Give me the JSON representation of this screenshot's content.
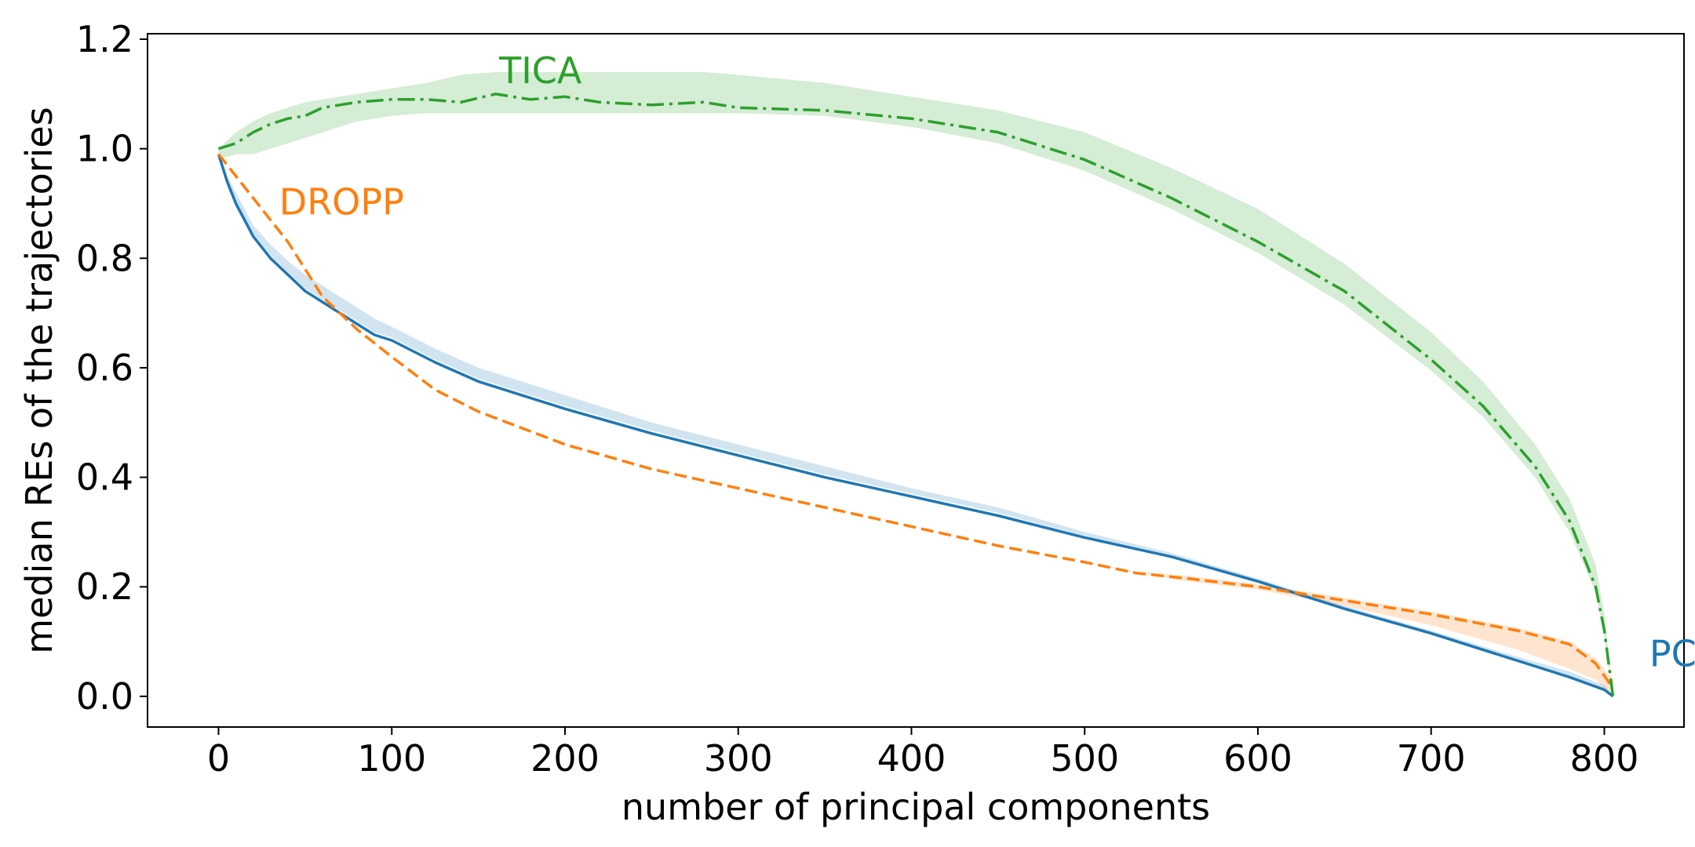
{
  "chart_data": {
    "type": "line",
    "title": "",
    "xlabel": "number of principal components",
    "ylabel": "median REs of the trajectories",
    "xlim": [
      -41,
      846
    ],
    "ylim": [
      -0.056,
      1.21
    ],
    "xticks": [
      0,
      100,
      200,
      300,
      400,
      500,
      600,
      700,
      800
    ],
    "yticks": [
      0.0,
      0.2,
      0.4,
      0.6,
      0.8,
      1.0,
      1.2
    ],
    "xtick_labels": [
      "0",
      "100",
      "200",
      "300",
      "400",
      "500",
      "600",
      "700",
      "800"
    ],
    "ytick_labels": [
      "0.0",
      "0.2",
      "0.4",
      "0.6",
      "0.8",
      "1.0",
      "1.2"
    ],
    "grid": false,
    "legend": "none",
    "series": [
      {
        "name": "PCA",
        "color": "#1f77b4",
        "linestyle": "solid",
        "label_anchor": [
          826,
          0.055
        ],
        "x": [
          0,
          5,
          10,
          20,
          30,
          40,
          50,
          60,
          70,
          80,
          90,
          100,
          125,
          150,
          175,
          200,
          250,
          300,
          350,
          400,
          450,
          500,
          550,
          600,
          650,
          700,
          750,
          780,
          800,
          805
        ],
        "values": [
          0.99,
          0.94,
          0.9,
          0.84,
          0.8,
          0.77,
          0.74,
          0.72,
          0.7,
          0.68,
          0.66,
          0.65,
          0.61,
          0.575,
          0.55,
          0.525,
          0.48,
          0.44,
          0.4,
          0.365,
          0.33,
          0.29,
          0.255,
          0.21,
          0.16,
          0.115,
          0.065,
          0.035,
          0.012,
          0.0
        ],
        "band_lower": [
          0.99,
          0.94,
          0.9,
          0.845,
          0.805,
          0.775,
          0.745,
          0.725,
          0.705,
          0.685,
          0.665,
          0.655,
          0.615,
          0.58,
          0.555,
          0.53,
          0.485,
          0.445,
          0.405,
          0.37,
          0.335,
          0.293,
          0.258,
          0.212,
          0.162,
          0.117,
          0.067,
          0.036,
          0.013,
          0.0
        ],
        "band_upper": [
          0.99,
          0.95,
          0.92,
          0.86,
          0.825,
          0.795,
          0.77,
          0.75,
          0.73,
          0.71,
          0.69,
          0.675,
          0.635,
          0.6,
          0.575,
          0.55,
          0.5,
          0.46,
          0.42,
          0.38,
          0.345,
          0.3,
          0.262,
          0.215,
          0.165,
          0.12,
          0.072,
          0.045,
          0.02,
          0.0
        ]
      },
      {
        "name": "DROPP",
        "color": "#ff7f0e",
        "linestyle": "dashed",
        "label_anchor": [
          35,
          0.88
        ],
        "x": [
          0,
          10,
          20,
          30,
          40,
          50,
          60,
          70,
          80,
          90,
          100,
          125,
          150,
          175,
          200,
          250,
          300,
          350,
          400,
          450,
          500,
          530,
          560,
          600,
          650,
          700,
          750,
          780,
          795,
          805
        ],
        "values": [
          0.99,
          0.95,
          0.91,
          0.87,
          0.83,
          0.78,
          0.73,
          0.7,
          0.67,
          0.645,
          0.62,
          0.56,
          0.52,
          0.49,
          0.46,
          0.415,
          0.38,
          0.345,
          0.31,
          0.275,
          0.245,
          0.225,
          0.215,
          0.2,
          0.175,
          0.15,
          0.12,
          0.095,
          0.06,
          0.015
        ],
        "band_lower": [
          0.99,
          0.95,
          0.91,
          0.87,
          0.83,
          0.78,
          0.73,
          0.7,
          0.67,
          0.645,
          0.62,
          0.56,
          0.52,
          0.49,
          0.46,
          0.415,
          0.38,
          0.345,
          0.31,
          0.275,
          0.245,
          0.225,
          0.21,
          0.195,
          0.165,
          0.13,
          0.085,
          0.05,
          0.03,
          0.0
        ],
        "band_upper": [
          0.99,
          0.95,
          0.91,
          0.87,
          0.83,
          0.78,
          0.73,
          0.7,
          0.67,
          0.645,
          0.62,
          0.56,
          0.52,
          0.49,
          0.46,
          0.415,
          0.38,
          0.345,
          0.31,
          0.275,
          0.245,
          0.228,
          0.22,
          0.205,
          0.18,
          0.155,
          0.125,
          0.1,
          0.07,
          0.03
        ]
      },
      {
        "name": "TICA",
        "color": "#2ca02c",
        "linestyle": "dashdot",
        "label_anchor": [
          162,
          1.12
        ],
        "x": [
          0,
          10,
          20,
          30,
          40,
          50,
          60,
          70,
          80,
          100,
          120,
          140,
          160,
          180,
          200,
          220,
          250,
          280,
          300,
          350,
          400,
          450,
          500,
          550,
          600,
          650,
          700,
          730,
          760,
          780,
          795,
          800,
          805
        ],
        "values": [
          1.0,
          1.01,
          1.03,
          1.045,
          1.055,
          1.06,
          1.075,
          1.08,
          1.085,
          1.09,
          1.09,
          1.085,
          1.1,
          1.09,
          1.095,
          1.085,
          1.08,
          1.085,
          1.075,
          1.07,
          1.055,
          1.03,
          0.98,
          0.91,
          0.83,
          0.74,
          0.615,
          0.53,
          0.42,
          0.32,
          0.2,
          0.12,
          0.0
        ],
        "band_lower": [
          0.98,
          0.99,
          0.99,
          1.0,
          1.01,
          1.02,
          1.03,
          1.04,
          1.05,
          1.06,
          1.065,
          1.065,
          1.065,
          1.065,
          1.065,
          1.065,
          1.065,
          1.065,
          1.065,
          1.06,
          1.04,
          1.01,
          0.96,
          0.89,
          0.81,
          0.715,
          0.595,
          0.51,
          0.4,
          0.3,
          0.19,
          0.11,
          0.0
        ],
        "band_upper": [
          1.0,
          1.03,
          1.05,
          1.065,
          1.075,
          1.085,
          1.09,
          1.095,
          1.1,
          1.11,
          1.12,
          1.135,
          1.14,
          1.14,
          1.14,
          1.14,
          1.14,
          1.14,
          1.135,
          1.12,
          1.095,
          1.07,
          1.03,
          0.965,
          0.89,
          0.79,
          0.665,
          0.575,
          0.46,
          0.36,
          0.24,
          0.15,
          0.0
        ]
      }
    ]
  }
}
